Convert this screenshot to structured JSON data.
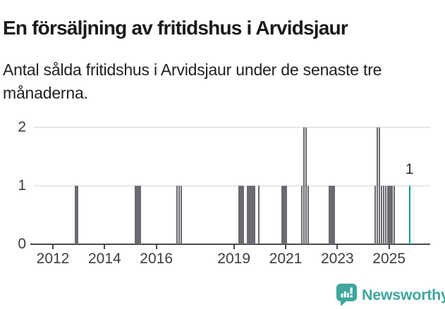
{
  "title": "En försäljning av fritidshus i Arvidsjaur",
  "subtitle": "Antal sålda fritidshus i Arvidsjaur under de senaste tre månaderna.",
  "footer": {
    "brand": "Newsworthy"
  },
  "colors": {
    "bar_gray": "#6a6a70",
    "accent_teal": "#00a39b",
    "axis": "#4a4a4a",
    "grid": "#e8e8e8",
    "tick_text": "#3d3d3d",
    "logo_teal": "#3fa69e"
  },
  "chart_data": {
    "type": "bar",
    "title": "En försäljning av fritidshus i Arvidsjaur",
    "subtitle": "Antal sålda fritidshus i Arvidsjaur under de senaste tre månaderna.",
    "xlabel": "",
    "ylabel": "",
    "ylim": [
      0,
      2
    ],
    "grid": "horizontal",
    "x_ticks": [
      2012,
      2014,
      2016,
      2019,
      2021,
      2023,
      2025
    ],
    "y_ticks": [
      0,
      1,
      2
    ],
    "annotation": {
      "text": "1",
      "month": "2025-10"
    },
    "segments": [
      {
        "from": "2012-11",
        "months": 2,
        "value": 1
      },
      {
        "from": "2015-03",
        "months": 3,
        "value": 1
      },
      {
        "from": "2016-10",
        "months": 1,
        "value": 1
      },
      {
        "from": "2016-11",
        "months": 1,
        "value": 1
      },
      {
        "from": "2016-12",
        "months": 1,
        "value": 1
      },
      {
        "from": "2019-03",
        "months": 3,
        "value": 1
      },
      {
        "from": "2019-07",
        "months": 4,
        "value": 1
      },
      {
        "from": "2019-12",
        "months": 1,
        "value": 1
      },
      {
        "from": "2020-11",
        "months": 3,
        "value": 1
      },
      {
        "from": "2021-08",
        "months": 1,
        "value": 1
      },
      {
        "from": "2021-09",
        "months": 1,
        "value": 2
      },
      {
        "from": "2021-10",
        "months": 1,
        "value": 2
      },
      {
        "from": "2021-11",
        "months": 1,
        "value": 1
      },
      {
        "from": "2022-09",
        "months": 3,
        "value": 1
      },
      {
        "from": "2024-06",
        "months": 1,
        "value": 1
      },
      {
        "from": "2024-07",
        "months": 1,
        "value": 2
      },
      {
        "from": "2024-08",
        "months": 1,
        "value": 2
      },
      {
        "from": "2024-09",
        "months": 1,
        "value": 1
      },
      {
        "from": "2024-10",
        "months": 1,
        "value": 1
      },
      {
        "from": "2024-11",
        "months": 1,
        "value": 1
      },
      {
        "from": "2024-12",
        "months": 3,
        "value": 1
      },
      {
        "from": "2025-03",
        "months": 1,
        "value": 1
      },
      {
        "from": "2025-10",
        "months": 1,
        "value": 1,
        "highlight": true,
        "label": "1"
      }
    ]
  }
}
